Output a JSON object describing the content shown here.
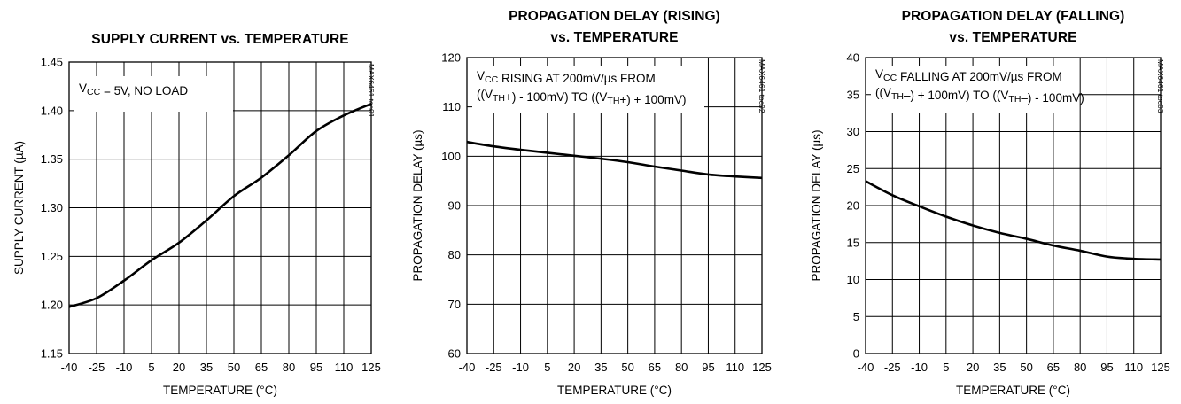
{
  "chart_data": [
    {
      "type": "line",
      "title_lines": [
        "SUPPLY CURRENT vs. TEMPERATURE"
      ],
      "xlabel": "TEMPERATURE (°C)",
      "ylabel": "SUPPLY CURRENT (µA)",
      "xlim": [
        -40,
        125
      ],
      "ylim": [
        1.15,
        1.45
      ],
      "x_ticks": [
        -40,
        -25,
        -10,
        5,
        20,
        35,
        50,
        65,
        80,
        95,
        110,
        125
      ],
      "y_ticks": [
        1.15,
        1.2,
        1.25,
        1.3,
        1.35,
        1.4,
        1.45
      ],
      "y_tick_labels": [
        "1.15",
        "1.20",
        "1.25",
        "1.30",
        "1.35",
        "1.40",
        "1.45"
      ],
      "grid": true,
      "note_lines": [
        [
          {
            "t": "V"
          },
          {
            "t": "CC",
            "sub": true
          },
          {
            "t": " = 5V, NO LOAD"
          }
        ]
      ],
      "part_number": "MAX6461 toc01",
      "series": [
        {
          "x": [
            -40,
            -25,
            -10,
            5,
            20,
            35,
            50,
            65,
            80,
            95,
            110,
            125
          ],
          "y": [
            1.198,
            1.207,
            1.225,
            1.246,
            1.264,
            1.287,
            1.312,
            1.331,
            1.354,
            1.379,
            1.395,
            1.407
          ]
        }
      ]
    },
    {
      "type": "line",
      "title_lines": [
        "PROPAGATION DELAY (RISING)",
        "vs. TEMPERATURE"
      ],
      "xlabel": "TEMPERATURE (°C)",
      "ylabel": "PROPAGATION DELAY (µs)",
      "xlim": [
        -40,
        125
      ],
      "ylim": [
        60,
        120
      ],
      "x_ticks": [
        -40,
        -25,
        -10,
        5,
        20,
        35,
        50,
        65,
        80,
        95,
        110,
        125
      ],
      "y_ticks": [
        60,
        70,
        80,
        90,
        100,
        110,
        120
      ],
      "y_tick_labels": [
        "60",
        "70",
        "80",
        "90",
        "100",
        "110",
        "120"
      ],
      "grid": true,
      "note_lines": [
        [
          {
            "t": "V"
          },
          {
            "t": "CC",
            "sub": true
          },
          {
            "t": " RISING AT 200mV/µs FROM"
          }
        ],
        [
          {
            "t": "((V"
          },
          {
            "t": "TH",
            "sub": true
          },
          {
            "t": "+) - 100mV) TO ((V"
          },
          {
            "t": "TH",
            "sub": true
          },
          {
            "t": "+) + 100mV)"
          }
        ]
      ],
      "part_number": "MAX6461 toc02",
      "series": [
        {
          "x": [
            -40,
            -25,
            -10,
            5,
            20,
            35,
            50,
            65,
            80,
            95,
            110,
            125
          ],
          "y": [
            102.9,
            102.0,
            101.3,
            100.7,
            100.1,
            99.5,
            98.8,
            97.9,
            97.1,
            96.3,
            95.9,
            95.6
          ]
        }
      ]
    },
    {
      "type": "line",
      "title_lines": [
        "PROPAGATION DELAY (FALLING)",
        "vs. TEMPERATURE"
      ],
      "xlabel": "TEMPERATURE (°C)",
      "ylabel": "PROPAGATION DELAY (µs)",
      "xlim": [
        -40,
        125
      ],
      "ylim": [
        0,
        40
      ],
      "x_ticks": [
        -40,
        -25,
        -10,
        5,
        20,
        35,
        50,
        65,
        80,
        95,
        110,
        125
      ],
      "y_ticks": [
        0,
        5,
        10,
        15,
        20,
        25,
        30,
        35,
        40
      ],
      "y_tick_labels": [
        "0",
        "5",
        "10",
        "15",
        "20",
        "25",
        "30",
        "35",
        "40"
      ],
      "grid": true,
      "note_lines": [
        [
          {
            "t": "V"
          },
          {
            "t": "CC",
            "sub": true
          },
          {
            "t": " FALLING AT 200mV/µs FROM"
          }
        ],
        [
          {
            "t": "((V"
          },
          {
            "t": "TH",
            "sub": true
          },
          {
            "t": "–) + 100mV) TO ((V"
          },
          {
            "t": "TH",
            "sub": true
          },
          {
            "t": "–) - 100mV)"
          }
        ]
      ],
      "part_number": "MAX6461 toc03",
      "series": [
        {
          "x": [
            -40,
            -25,
            -10,
            5,
            20,
            35,
            50,
            65,
            80,
            95,
            110,
            125
          ],
          "y": [
            23.3,
            21.4,
            19.9,
            18.5,
            17.3,
            16.3,
            15.5,
            14.6,
            13.9,
            13.1,
            12.8,
            12.7
          ]
        }
      ]
    }
  ]
}
